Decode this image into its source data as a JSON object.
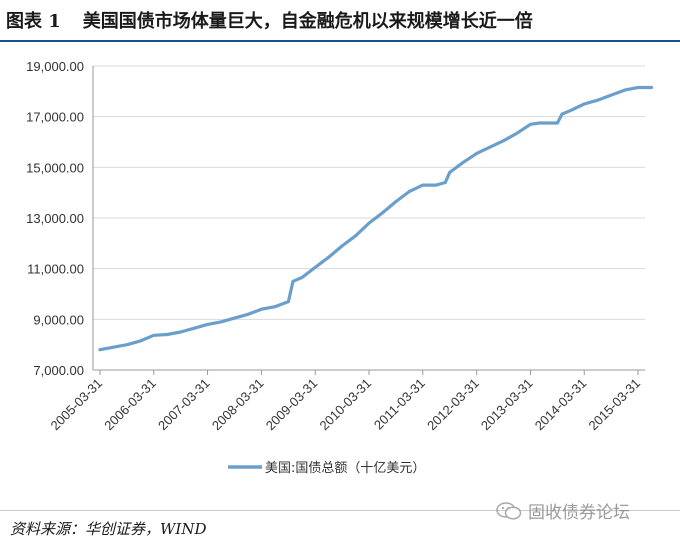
{
  "figure": {
    "number": "图表 1",
    "title": "美国国债市场体量巨大，自金融危机以来规模增长近一倍"
  },
  "source_text": "资料来源：华创证券，WIND",
  "watermark": {
    "icon": "wechat-icon",
    "text": "固收债券论坛"
  },
  "colors": {
    "series": "#6a9fcc",
    "axis": "#9a9a9a",
    "grid": "#d9d9d9",
    "title_rule": "#1f4e8c"
  },
  "chart_data": {
    "type": "line",
    "title": "",
    "xlabel": "",
    "ylabel": "",
    "ylim": [
      7000,
      19000
    ],
    "yticks": [
      7000,
      9000,
      11000,
      13000,
      15000,
      17000,
      19000
    ],
    "ytick_labels": [
      "7,000.00",
      "9,000.00",
      "11,000.00",
      "13,000.00",
      "15,000.00",
      "17,000.00",
      "19,000.00"
    ],
    "xticks": [
      "2005-03-31",
      "2006-03-31",
      "2007-03-31",
      "2008-03-31",
      "2009-03-31",
      "2010-03-31",
      "2011-03-31",
      "2012-03-31",
      "2013-03-31",
      "2014-03-31",
      "2015-03-31"
    ],
    "grid": true,
    "legend": {
      "position": "bottom-center"
    },
    "series": [
      {
        "name": "美国:国债总额（十亿美元）",
        "x": [
          "2005-03-31",
          "2005-06-30",
          "2005-09-30",
          "2005-12-31",
          "2006-03-31",
          "2006-06-30",
          "2006-09-30",
          "2006-12-31",
          "2007-03-31",
          "2007-06-30",
          "2007-09-30",
          "2007-12-31",
          "2008-03-31",
          "2008-06-30",
          "2008-09-30",
          "2008-10-31",
          "2008-12-31",
          "2009-03-31",
          "2009-06-30",
          "2009-09-30",
          "2009-12-31",
          "2010-03-31",
          "2010-06-30",
          "2010-09-30",
          "2010-12-31",
          "2011-03-31",
          "2011-06-30",
          "2011-08-31",
          "2011-09-30",
          "2011-12-31",
          "2012-03-31",
          "2012-06-30",
          "2012-09-30",
          "2012-12-31",
          "2013-03-31",
          "2013-05-31",
          "2013-06-30",
          "2013-09-30",
          "2013-10-31",
          "2013-12-31",
          "2014-03-31",
          "2014-06-30",
          "2014-09-30",
          "2014-12-31",
          "2015-03-31",
          "2015-06-30"
        ],
        "values": [
          7800,
          7900,
          8000,
          8150,
          8370,
          8400,
          8500,
          8650,
          8800,
          8900,
          9050,
          9200,
          9400,
          9500,
          9700,
          10500,
          10650,
          11050,
          11450,
          11900,
          12300,
          12800,
          13200,
          13650,
          14050,
          14300,
          14300,
          14400,
          14800,
          15200,
          15550,
          15800,
          16050,
          16350,
          16700,
          16750,
          16750,
          16750,
          17100,
          17250,
          17500,
          17650,
          17850,
          18050,
          18150,
          18150
        ]
      }
    ]
  }
}
